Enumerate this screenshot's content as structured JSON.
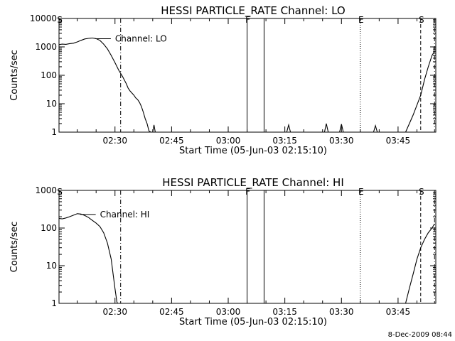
{
  "figure_date": "8-Dec-2009 08:44",
  "chart_data": [
    {
      "type": "line",
      "title": "HESSI PARTICLE_RATE Channel: LO",
      "xlabel": "Start Time (05-Jun-03 02:15:10)",
      "ylabel": "Counts/sec",
      "yscale": "log",
      "ylim": [
        1,
        10000
      ],
      "xlim": [
        "02:15:10",
        "03:55:00"
      ],
      "yticks": [
        {
          "value": 1,
          "label": "1"
        },
        {
          "value": 10,
          "label": "10"
        },
        {
          "value": 100,
          "label": "100"
        },
        {
          "value": 1000,
          "label": "1000"
        },
        {
          "value": 10000,
          "label": "10000"
        }
      ],
      "xticks": [
        {
          "time": "02:30",
          "label": "02:30"
        },
        {
          "time": "02:45",
          "label": "02:45"
        },
        {
          "time": "03:00",
          "label": "03:00"
        },
        {
          "time": "03:15",
          "label": "03:15"
        },
        {
          "time": "03:30",
          "label": "03:30"
        },
        {
          "time": "03:45",
          "label": "03:45"
        }
      ],
      "series_label": "Channel: LO",
      "series": [
        {
          "values": [
            [
              "02:15:10",
              1200
            ],
            [
              "02:16:00",
              1250
            ],
            [
              "02:17:00",
              1230
            ],
            [
              "02:18:00",
              1300
            ],
            [
              "02:19:00",
              1350
            ],
            [
              "02:20:00",
              1500
            ],
            [
              "02:21:00",
              1700
            ],
            [
              "02:22:00",
              1900
            ],
            [
              "02:23:00",
              2000
            ],
            [
              "02:24:00",
              2050
            ],
            [
              "02:25:00",
              1950
            ],
            [
              "02:26:00",
              1700
            ],
            [
              "02:27:00",
              1250
            ],
            [
              "02:28:00",
              850
            ],
            [
              "02:29:00",
              500
            ],
            [
              "02:30:00",
              280
            ],
            [
              "02:31:00",
              150
            ],
            [
              "02:32:00",
              90
            ],
            [
              "02:33:00",
              50
            ],
            [
              "02:33:30",
              35
            ],
            [
              "02:34:00",
              28
            ],
            [
              "02:35:00",
              20
            ],
            [
              "02:35:30",
              16
            ],
            [
              "02:36:00",
              14
            ],
            [
              "02:36:30",
              11
            ],
            [
              "02:37:00",
              8
            ],
            [
              "02:37:30",
              5
            ],
            [
              "02:38:00",
              3
            ],
            [
              "02:38:30",
              2
            ],
            [
              "02:39:00",
              1.1
            ],
            [
              "02:39:30",
              1
            ],
            [
              "03:55:00",
              1
            ]
          ]
        },
        {
          "values": [
            [
              "02:40:00",
              1
            ],
            [
              "02:40:20",
              1.8
            ],
            [
              "02:40:40",
              1
            ]
          ]
        },
        {
          "values": [
            [
              "03:15:30",
              1
            ],
            [
              "03:16:00",
              1.8
            ],
            [
              "03:16:30",
              1
            ]
          ]
        },
        {
          "values": [
            [
              "03:25:30",
              1
            ],
            [
              "03:26:00",
              2
            ],
            [
              "03:26:30",
              1
            ]
          ]
        },
        {
          "values": [
            [
              "03:29:30",
              1
            ],
            [
              "03:30:00",
              1.9
            ],
            [
              "03:30:30",
              1
            ]
          ]
        },
        {
          "values": [
            [
              "03:38:30",
              1
            ],
            [
              "03:39:00",
              1.7
            ],
            [
              "03:39:30",
              1
            ]
          ]
        },
        {
          "values": [
            [
              "03:47:00",
              1
            ],
            [
              "03:48:00",
              2
            ],
            [
              "03:49:00",
              4
            ],
            [
              "03:50:00",
              9
            ],
            [
              "03:51:00",
              20
            ],
            [
              "03:52:00",
              70
            ],
            [
              "03:53:00",
              200
            ],
            [
              "03:54:00",
              500
            ],
            [
              "03:54:40",
              700
            ]
          ]
        }
      ],
      "markers": [
        {
          "time": "02:15:10",
          "style": "dash-dot",
          "label": "S"
        },
        {
          "time": "02:31:30",
          "style": "dash-dot",
          "label": ""
        },
        {
          "time": "03:05:00",
          "style": "solid",
          "label": "F"
        },
        {
          "time": "03:09:30",
          "style": "solid",
          "label": ""
        },
        {
          "time": "03:35:00",
          "style": "dotted",
          "label": "E"
        },
        {
          "time": "03:51:00",
          "style": "dashed",
          "label": "S"
        },
        {
          "time": "03:54:40",
          "style": "dash-dot",
          "label": ""
        }
      ]
    },
    {
      "type": "line",
      "title": "HESSI PARTICLE_RATE Channel: HI",
      "xlabel": "Start Time (05-Jun-03 02:15:10)",
      "ylabel": "Counts/sec",
      "yscale": "log",
      "ylim": [
        1,
        1000
      ],
      "xlim": [
        "02:15:10",
        "03:55:00"
      ],
      "yticks": [
        {
          "value": 1,
          "label": "1"
        },
        {
          "value": 10,
          "label": "10"
        },
        {
          "value": 100,
          "label": "100"
        },
        {
          "value": 1000,
          "label": "1000"
        }
      ],
      "xticks": [
        {
          "time": "02:30",
          "label": "02:30"
        },
        {
          "time": "02:45",
          "label": "02:45"
        },
        {
          "time": "03:00",
          "label": "03:00"
        },
        {
          "time": "03:15",
          "label": "03:15"
        },
        {
          "time": "03:30",
          "label": "03:30"
        },
        {
          "time": "03:45",
          "label": "03:45"
        }
      ],
      "series_label": "Channel: HI",
      "series": [
        {
          "values": [
            [
              "02:15:10",
              180
            ],
            [
              "02:16:00",
              175
            ],
            [
              "02:17:00",
              185
            ],
            [
              "02:18:00",
              200
            ],
            [
              "02:19:00",
              220
            ],
            [
              "02:20:00",
              240
            ],
            [
              "02:21:00",
              235
            ],
            [
              "02:22:00",
              215
            ],
            [
              "02:23:00",
              190
            ],
            [
              "02:24:00",
              160
            ],
            [
              "02:25:00",
              135
            ],
            [
              "02:26:00",
              110
            ],
            [
              "02:27:00",
              75
            ],
            [
              "02:28:00",
              40
            ],
            [
              "02:29:00",
              15
            ],
            [
              "02:29:30",
              6
            ],
            [
              "02:30:00",
              2.5
            ],
            [
              "02:30:30",
              1.1
            ],
            [
              "02:30:40",
              1
            ],
            [
              "03:55:00",
              1
            ]
          ]
        },
        {
          "values": [
            [
              "03:47:00",
              1
            ],
            [
              "03:48:00",
              2.5
            ],
            [
              "03:49:00",
              6
            ],
            [
              "03:50:00",
              15
            ],
            [
              "03:51:00",
              30
            ],
            [
              "03:52:00",
              50
            ],
            [
              "03:53:00",
              75
            ],
            [
              "03:54:00",
              100
            ],
            [
              "03:54:40",
              130
            ]
          ]
        }
      ],
      "markers": [
        {
          "time": "02:15:10",
          "style": "dash-dot",
          "label": "S"
        },
        {
          "time": "02:31:30",
          "style": "dash-dot",
          "label": ""
        },
        {
          "time": "03:05:00",
          "style": "solid",
          "label": "F"
        },
        {
          "time": "03:09:30",
          "style": "solid",
          "label": ""
        },
        {
          "time": "03:35:00",
          "style": "dotted",
          "label": "E"
        },
        {
          "time": "03:51:00",
          "style": "dashed",
          "label": "S"
        },
        {
          "time": "03:54:40",
          "style": "dash-dot",
          "label": ""
        }
      ]
    }
  ]
}
